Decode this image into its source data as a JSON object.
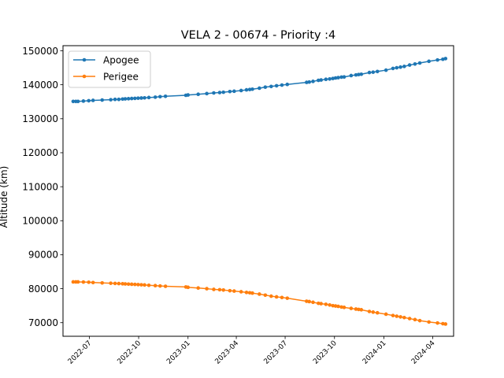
{
  "chart_data": {
    "type": "line",
    "title": "VELA 2 - 00674 - Priority :4",
    "xlabel": "",
    "ylabel": "Altitude (km)",
    "ylim": [
      66000,
      151500
    ],
    "xlim": [
      "2022-05-13",
      "2024-05-10"
    ],
    "grid": false,
    "legend_position": "top-left",
    "x_ticks": [
      "2022-07",
      "2022-10",
      "2023-01",
      "2023-04",
      "2023-07",
      "2023-10",
      "2024-01",
      "2024-04"
    ],
    "y_ticks": [
      70000,
      80000,
      90000,
      100000,
      110000,
      120000,
      130000,
      140000,
      150000
    ],
    "series": [
      {
        "name": "Apogee",
        "color": "#1f77b4",
        "x": [
          "2022-06-01",
          "2022-06-06",
          "2022-06-10",
          "2022-06-20",
          "2022-06-30",
          "2022-07-08",
          "2022-07-25",
          "2022-08-10",
          "2022-08-18",
          "2022-08-25",
          "2022-09-01",
          "2022-09-06",
          "2022-09-12",
          "2022-09-18",
          "2022-09-24",
          "2022-09-30",
          "2022-10-06",
          "2022-10-12",
          "2022-10-20",
          "2022-11-01",
          "2022-11-10",
          "2022-11-20",
          "2022-12-28",
          "2023-01-01",
          "2023-01-20",
          "2023-02-05",
          "2023-02-18",
          "2023-03-01",
          "2023-03-08",
          "2023-03-20",
          "2023-03-28",
          "2023-04-10",
          "2023-04-20",
          "2023-04-26",
          "2023-05-01",
          "2023-05-14",
          "2023-05-25",
          "2023-06-05",
          "2023-06-15",
          "2023-06-25",
          "2023-07-05",
          "2023-08-10",
          "2023-08-15",
          "2023-08-22",
          "2023-09-01",
          "2023-09-06",
          "2023-09-15",
          "2023-09-22",
          "2023-09-28",
          "2023-10-03",
          "2023-10-08",
          "2023-10-14",
          "2023-10-19",
          "2023-11-01",
          "2023-11-10",
          "2023-11-15",
          "2023-11-20",
          "2023-12-05",
          "2023-12-12",
          "2023-12-20",
          "2024-01-05",
          "2024-01-18",
          "2024-01-25",
          "2024-02-01",
          "2024-02-08",
          "2024-02-18",
          "2024-02-28",
          "2024-03-08",
          "2024-03-25",
          "2024-04-10",
          "2024-04-20",
          "2024-04-25"
        ],
        "values": [
          135100,
          135100,
          135100,
          135200,
          135300,
          135400,
          135500,
          135600,
          135700,
          135700,
          135800,
          135850,
          135900,
          135950,
          136000,
          136050,
          136100,
          136150,
          136250,
          136350,
          136500,
          136600,
          136900,
          137000,
          137200,
          137400,
          137600,
          137700,
          137800,
          138000,
          138100,
          138300,
          138500,
          138600,
          138700,
          139000,
          139300,
          139500,
          139700,
          139900,
          140100,
          140700,
          140800,
          141000,
          141300,
          141400,
          141600,
          141700,
          141850,
          142000,
          142100,
          142250,
          142300,
          142700,
          142900,
          143000,
          143100,
          143600,
          143700,
          143900,
          144300,
          144800,
          145000,
          145200,
          145400,
          145800,
          146100,
          146400,
          146900,
          147300,
          147500,
          147700
        ]
      },
      {
        "name": "Perigee",
        "color": "#ff7f0e",
        "x": [
          "2022-06-01",
          "2022-06-06",
          "2022-06-10",
          "2022-06-20",
          "2022-06-30",
          "2022-07-08",
          "2022-07-25",
          "2022-08-10",
          "2022-08-18",
          "2022-08-25",
          "2022-09-01",
          "2022-09-06",
          "2022-09-12",
          "2022-09-18",
          "2022-09-24",
          "2022-09-30",
          "2022-10-06",
          "2022-10-12",
          "2022-10-20",
          "2022-11-01",
          "2022-11-10",
          "2022-11-20",
          "2022-12-28",
          "2023-01-01",
          "2023-01-20",
          "2023-02-05",
          "2023-02-18",
          "2023-03-01",
          "2023-03-08",
          "2023-03-20",
          "2023-03-28",
          "2023-04-10",
          "2023-04-20",
          "2023-04-26",
          "2023-05-01",
          "2023-05-14",
          "2023-05-25",
          "2023-06-05",
          "2023-06-15",
          "2023-06-25",
          "2023-07-05",
          "2023-08-10",
          "2023-08-15",
          "2023-08-22",
          "2023-09-01",
          "2023-09-06",
          "2023-09-15",
          "2023-09-22",
          "2023-09-28",
          "2023-10-03",
          "2023-10-08",
          "2023-10-14",
          "2023-10-19",
          "2023-11-01",
          "2023-11-10",
          "2023-11-15",
          "2023-11-20",
          "2023-12-05",
          "2023-12-12",
          "2023-12-20",
          "2024-01-05",
          "2024-01-18",
          "2024-01-25",
          "2024-02-01",
          "2024-02-08",
          "2024-02-18",
          "2024-02-28",
          "2024-03-08",
          "2024-03-25",
          "2024-04-10",
          "2024-04-20",
          "2024-04-25"
        ],
        "values": [
          82000,
          82000,
          82000,
          81950,
          81900,
          81800,
          81700,
          81600,
          81550,
          81500,
          81450,
          81400,
          81350,
          81300,
          81250,
          81200,
          81150,
          81100,
          81000,
          80900,
          80800,
          80700,
          80500,
          80400,
          80200,
          80000,
          79800,
          79700,
          79600,
          79400,
          79300,
          79100,
          78900,
          78800,
          78700,
          78400,
          78100,
          77800,
          77600,
          77400,
          77200,
          76300,
          76200,
          76000,
          75700,
          75600,
          75400,
          75200,
          75000,
          74900,
          74800,
          74600,
          74500,
          74200,
          74000,
          73900,
          73800,
          73300,
          73100,
          72900,
          72500,
          72100,
          71900,
          71700,
          71500,
          71200,
          70900,
          70600,
          70200,
          69900,
          69700,
          69600
        ]
      }
    ]
  }
}
